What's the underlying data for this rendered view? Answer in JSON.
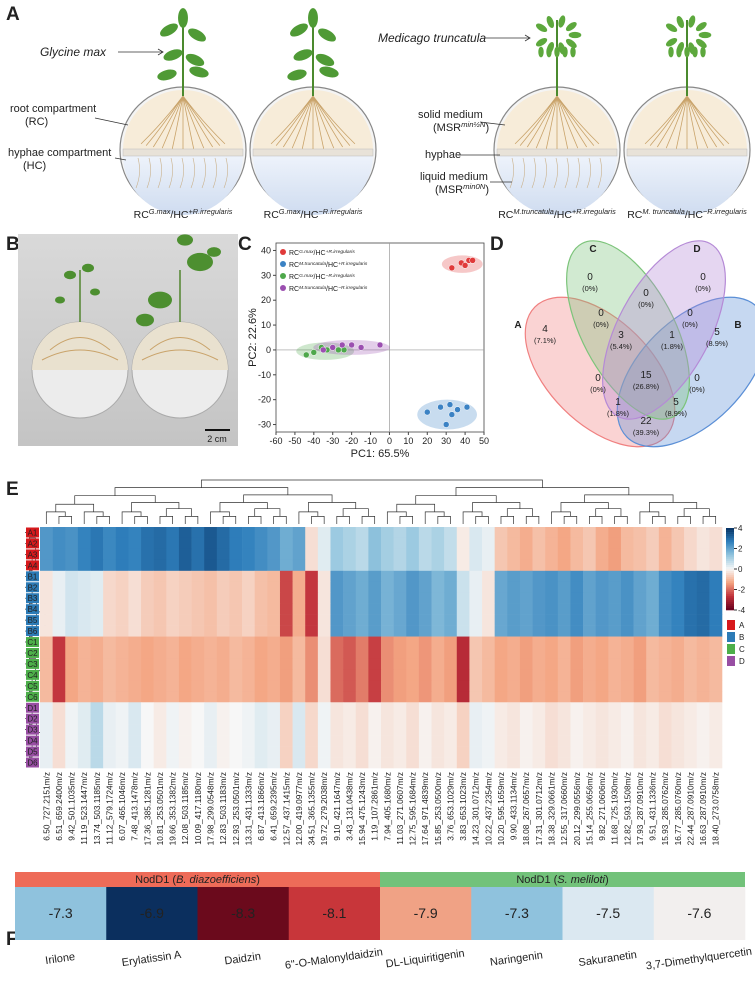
{
  "panel_labels": [
    "A",
    "B",
    "C",
    "D",
    "E",
    "F"
  ],
  "diagram": {
    "species": [
      "Glycine max",
      "Medicago truncatula"
    ],
    "callouts": [
      [
        [
          "root compartment"
        ],
        [
          "(RC)"
        ]
      ],
      [
        [
          "hyphae compartment"
        ],
        [
          "(HC)"
        ]
      ],
      [
        [
          "solid medium"
        ],
        [
          "(MSR",
          "min½N",
          ")"
        ]
      ],
      [
        [
          "hyphae"
        ]
      ],
      [
        [
          "liquid medium"
        ],
        [
          "(MSR",
          "min0N",
          ")"
        ]
      ]
    ],
    "captions": [
      [
        "RC",
        "G.max",
        "/HC",
        "+R.irregularis"
      ],
      [
        "RC",
        "G.max",
        "/HC",
        "−R.irregularis"
      ],
      [
        "RC",
        "M.truncatula",
        "/HC",
        "+R.irregularis"
      ],
      [
        "RC",
        "M. truncatula",
        "/HC",
        "−R.irregularis"
      ]
    ]
  },
  "photo": {
    "scale": "2 cm"
  },
  "chart_data": [
    {
      "type": "scatter",
      "xlabel": "PC1: 65.5%",
      "ylabel": "PC2: 22.6%",
      "xlim": [
        -60,
        50
      ],
      "ylim": [
        -33,
        43
      ],
      "xticks": [
        -60,
        -50,
        -40,
        -30,
        -20,
        -10,
        0,
        10,
        20,
        30,
        40,
        50
      ],
      "yticks": [
        -30,
        -20,
        -10,
        0,
        10,
        20,
        30,
        40
      ],
      "series": [
        {
          "name": [
            "RC",
            "G.max",
            "/HC",
            "+R.irregularis"
          ],
          "color": "#e03a3a",
          "x": [
            33,
            38,
            42,
            40,
            44
          ],
          "values": [
            33,
            35,
            36,
            34,
            36
          ]
        },
        {
          "name": [
            "RC",
            "M.truncatula",
            "/HC",
            "+R.irregularis"
          ],
          "color": "#3b82c4",
          "x": [
            20,
            27,
            32,
            33,
            36,
            41,
            30
          ],
          "values": [
            -25,
            -23,
            -22,
            -26,
            -24,
            -23,
            -30
          ]
        },
        {
          "name": [
            "RC",
            "G.max",
            "/HC",
            "−R.irregularis"
          ],
          "color": "#4ea84b",
          "x": [
            -44,
            -40,
            -33,
            -27,
            -24,
            -36
          ],
          "values": [
            -2,
            -1,
            0,
            0,
            0,
            1
          ]
        },
        {
          "name": [
            "RC",
            "M.truncatula",
            "/HC",
            "−R.irregularis"
          ],
          "color": "#9b4fb0",
          "x": [
            -35,
            -25,
            -20,
            -15,
            -5,
            -30
          ],
          "values": [
            0,
            2,
            2,
            1,
            2,
            1
          ]
        }
      ]
    },
    {
      "type": "heatmap",
      "zlim": [
        -4,
        4
      ],
      "zticks": [
        4,
        2,
        0,
        -2,
        -4
      ],
      "colormap": [
        "#67001f",
        "#c0303a",
        "#f4a582",
        "#f7f7f7",
        "#92c5de",
        "#2f7fbc",
        "#053061"
      ],
      "x": [
        "6.50_727.2151m/z",
        "6.51_659.2400m/z",
        "9.42_501.1035m/z",
        "11.19_523.1447m/z",
        "13.74_503.1185m/z",
        "11.12_579.1724m/z",
        "6.07_465.1046m/z",
        "7.48_413.1478m/z",
        "17.36_385.1281m/z",
        "10.81_253.0501m/z",
        "19.66_353.1382m/z",
        "12.08_503.1185m/z",
        "10.09_417.1180m/z",
        "17.98_299.0548m/z",
        "12.83_503.1183m/z",
        "12.93_253.0501m/z",
        "13.31_431.1333m/z",
        "6.87_413.1866m/z",
        "6.41_659.2395m/z",
        "12.57_437.1415m/z",
        "12.00_419.0977m/z",
        "34.51_365.1355m/z",
        "19.72_279.2038m/z",
        "9.10_421.1647m/z",
        "3.43_131.0438m/z",
        "15.94_475.1243m/z",
        "1.19_107.2861m/z",
        "7.94_405.1680m/z",
        "11.03_271.0607m/z",
        "12.75_595.1684m/z",
        "17.64_971.4839m/z",
        "15.85_253.0500m/z",
        "3.76_653.1029m/z",
        "3.83_653.1023m/z",
        "14.23_301.0712m/z",
        "10.22_437.2354m/z",
        "10.20_595.1659m/z",
        "9.90_433.1134m/z",
        "18.08_267.0657m/z",
        "17.31_301.0712m/z",
        "18.38_329.0661m/z",
        "12.55_317.0660m/z",
        "20.12_299.0556m/z",
        "15.14_255.0656m/z",
        "9.82_271.0606m/z",
        "11.68_725.1930m/z",
        "12.82_593.1508m/z",
        "17.93_287.0910m/z",
        "9.51_431.1336m/z",
        "15.93_285.0762m/z",
        "16.77_285.0760m/z",
        "22.44_287.0910m/z",
        "16.63_287.0910m/z",
        "18.40_273.0758m/z"
      ],
      "groups": [
        {
          "name": "A",
          "color": "#d7191c",
          "rows": [
            "A1",
            "A2",
            "A3",
            "A4"
          ],
          "values": [
            2.2,
            2.4,
            2.3,
            2.6,
            2.8,
            2.5,
            2.7,
            2.6,
            2.9,
            3.0,
            2.8,
            3.2,
            2.9,
            3.3,
            3.0,
            2.7,
            2.6,
            2.4,
            2.2,
            1.8,
            2.0,
            -0.4,
            0.3,
            1.2,
            1.0,
            0.8,
            1.4,
            1.1,
            0.9,
            1.2,
            0.8,
            1.0,
            0.7,
            -0.2,
            0.4,
            0.2,
            -0.8,
            -1.0,
            -1.2,
            -0.9,
            -1.1,
            -1.3,
            -1.0,
            -0.8,
            -1.2,
            -1.4,
            -1.0,
            -0.9,
            -0.7,
            -1.1,
            -0.8,
            -0.5,
            -0.3,
            -0.4
          ]
        },
        {
          "name": "B",
          "color": "#2c7bb6",
          "rows": [
            "B1",
            "B2",
            "B3",
            "B4",
            "B5",
            "B6"
          ],
          "values": [
            -0.3,
            0.2,
            0.5,
            0.4,
            0.3,
            -0.5,
            -0.6,
            -0.4,
            -0.7,
            -0.8,
            -0.6,
            -0.7,
            -0.8,
            -0.9,
            -0.7,
            -0.8,
            -0.6,
            -0.9,
            -1.0,
            -2.4,
            -1.2,
            -2.6,
            -0.3,
            2.2,
            2.0,
            1.8,
            2.1,
            1.7,
            1.9,
            2.2,
            2.0,
            1.6,
            1.8,
            0.6,
            0.2,
            -0.3,
            1.9,
            2.1,
            2.0,
            2.2,
            2.3,
            2.1,
            2.4,
            2.0,
            2.2,
            2.1,
            2.3,
            2.0,
            1.8,
            2.4,
            2.6,
            2.9,
            3.0,
            2.7
          ]
        },
        {
          "name": "C",
          "color": "#4daf4a",
          "rows": [
            "C1",
            "C2",
            "C3",
            "C4",
            "C5",
            "C6"
          ],
          "values": [
            -1.0,
            -2.6,
            -1.3,
            -1.1,
            -1.2,
            -1.0,
            -1.1,
            -1.2,
            -1.3,
            -1.2,
            -1.1,
            -1.3,
            -1.2,
            -1.1,
            -1.2,
            -1.0,
            -1.1,
            -1.3,
            -1.2,
            -1.4,
            -1.0,
            -1.6,
            -0.4,
            -2.0,
            -2.2,
            -1.8,
            -2.5,
            -1.6,
            -1.4,
            -1.3,
            -1.5,
            -1.2,
            -1.4,
            -2.8,
            -0.8,
            -1.0,
            -1.3,
            -1.2,
            -1.4,
            -1.2,
            -1.3,
            -1.1,
            -1.4,
            -1.2,
            -1.3,
            -1.1,
            -1.2,
            -1.4,
            -1.0,
            -1.1,
            -1.2,
            -1.0,
            -1.1,
            -1.0
          ]
        },
        {
          "name": "D",
          "color": "#984ea3",
          "rows": [
            "D1",
            "D2",
            "D3",
            "D4",
            "D5",
            "D6"
          ],
          "values": [
            0.2,
            -0.4,
            0.1,
            0.3,
            0.8,
            0.2,
            0.1,
            0.4,
            0.0,
            -0.2,
            0.1,
            -0.1,
            0.0,
            0.2,
            -0.1,
            0.0,
            0.1,
            0.3,
            0.2,
            -0.6,
            0.4,
            -0.5,
            0.1,
            -0.3,
            -0.2,
            -0.4,
            -0.1,
            -0.3,
            -0.2,
            -0.4,
            -0.1,
            -0.3,
            -0.2,
            -0.6,
            0.2,
            0.1,
            -0.2,
            -0.3,
            -0.1,
            -0.2,
            -0.4,
            -0.3,
            -0.1,
            -0.2,
            -0.3,
            -0.2,
            -0.1,
            -0.3,
            -0.2,
            -0.4,
            -0.3,
            -0.2,
            -0.1,
            -0.2
          ]
        }
      ]
    }
  ],
  "venn": {
    "sets": [
      {
        "name": "A",
        "color": "#f08080"
      },
      {
        "name": "B",
        "color": "#5b8fd6"
      },
      {
        "name": "C",
        "color": "#7cc47a"
      },
      {
        "name": "D",
        "color": "#b58ad6"
      }
    ],
    "counts": [
      4,
      0,
      0,
      5,
      0,
      0,
      0,
      3,
      1,
      15,
      0,
      0,
      1,
      5,
      22
    ],
    "value_labels": [
      "(7.1%)",
      "(0%)",
      "(0%)",
      "(8.9%)",
      "(0%)",
      "(0%)",
      "(0%)",
      "(5.4%)",
      "(1.8%)",
      "(26.8%)",
      "(0%)",
      "(0%)",
      "(1.8%)",
      "(8.9%)",
      "(39.3%)"
    ]
  },
  "docking": {
    "groups": [
      {
        "name": [
          "NodD1 (",
          "B. diazoefficiens",
          ")"
        ],
        "color": "#ee6b58"
      },
      {
        "name": [
          "NodD1 (",
          "S. meliloti",
          ")"
        ],
        "color": "#72c27a"
      }
    ],
    "compounds": [
      "Irilone",
      "Erylatissin A",
      "Daidzin",
      "6\"-O-Malonyldaidzin",
      "DL-Liquiritigenin",
      "Naringenin",
      "Sakuranetin",
      "3,7-Dimethylquercetin"
    ],
    "values": [
      -7.3,
      -6.9,
      -8.3,
      -8.1,
      -7.9,
      -7.3,
      -7.5,
      -7.6
    ],
    "colors": [
      "#8fc2dd",
      "#0b2f5e",
      "#6b0a1c",
      "#c8363a",
      "#f0a285",
      "#8fc2dd",
      "#dbe8f1",
      "#f2efee"
    ]
  }
}
